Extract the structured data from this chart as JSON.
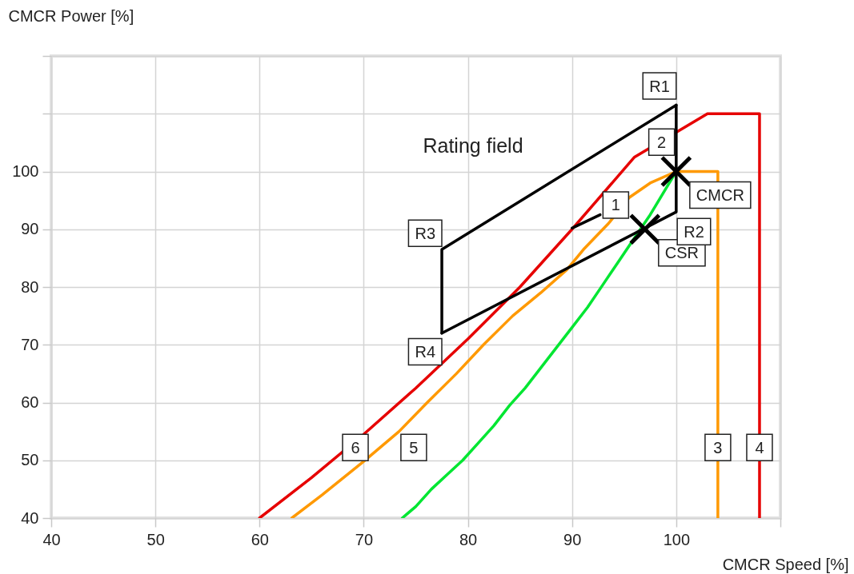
{
  "chart_data": {
    "type": "line",
    "xlabel": "CMCR Speed [%]",
    "ylabel": "CMCR Power [%]",
    "xlim": [
      40,
      110
    ],
    "xticks": [
      40,
      50,
      60,
      70,
      80,
      90,
      100,
      {
        "value": 110,
        "label": null
      }
    ],
    "ylim": [
      40,
      120
    ],
    "yticks": [
      40,
      50,
      60,
      70,
      80,
      90,
      100,
      {
        "value": 110,
        "label": null
      },
      {
        "value": 120,
        "label": null
      }
    ],
    "grid": true,
    "series": [
      {
        "color": "#e60000",
        "x": [
          60,
          65,
          70,
          75,
          80,
          85,
          90,
          96,
          103,
          108,
          108
        ],
        "values": [
          40,
          47,
          54.5,
          62.5,
          71,
          80,
          90,
          102.5,
          110,
          110,
          40
        ]
      },
      {
        "color": "#ff9900",
        "x": [
          63.1,
          66,
          70,
          73.4,
          76.1,
          78.9,
          81.5,
          84.3,
          87,
          89.5,
          91.1,
          93.5,
          95.5,
          97.5,
          100,
          104,
          104
        ],
        "values": [
          40,
          44,
          49.8,
          55,
          60,
          65,
          70,
          75,
          79,
          83,
          86.5,
          91,
          95.5,
          98,
          100,
          100,
          40
        ]
      },
      {
        "color": "#00e632",
        "x": [
          73.7,
          75,
          76.5,
          78,
          79.5,
          81,
          82.5,
          84,
          85.5,
          87,
          88.5,
          90,
          91.5,
          93,
          94.5,
          96,
          97.5,
          99,
          100
        ],
        "values": [
          40,
          42,
          45,
          47.5,
          50,
          53,
          56,
          59.5,
          62.5,
          66,
          69.5,
          73,
          76.5,
          80.5,
          84.5,
          88.5,
          92.5,
          97,
          100
        ]
      },
      {
        "color": "#000000",
        "x": [
          77.5,
          77.5,
          100
        ],
        "values": [
          72,
          86.5,
          111.5
        ]
      },
      {
        "color": "#000000",
        "x": [
          77.5,
          100,
          100
        ],
        "values": [
          72,
          93,
          111.5
        ]
      },
      {
        "color": "#000000",
        "x": [
          90,
          92.7
        ],
        "values": [
          90.2,
          92.5
        ]
      },
      {
        "type": "scatter",
        "name": "CMCR",
        "marker": "cross",
        "color": "#000000",
        "x": [
          100
        ],
        "values": [
          100
        ]
      },
      {
        "type": "scatter",
        "name": "CSR",
        "marker": "cross",
        "color": "#000000",
        "x": [
          97
        ],
        "values": [
          90
        ]
      }
    ],
    "annotations": [
      "Rating field",
      {
        "text": "R1",
        "x": 98.4,
        "y": 114.8
      },
      {
        "text": "2",
        "x": 98.6,
        "y": 105.1
      },
      {
        "text": "1",
        "x": 94.2,
        "y": 94.2
      },
      {
        "text": "R2",
        "x": 101.7,
        "y": 89.6
      },
      {
        "text": "R3",
        "x": 75.9,
        "y": 89.3
      },
      {
        "text": "R4",
        "x": 75.9,
        "y": 68.8
      },
      {
        "text": "6",
        "x": 69.2,
        "y": 52.2
      },
      {
        "text": "5",
        "x": 74.8,
        "y": 52.2
      },
      {
        "text": "3",
        "x": 104,
        "y": 52.2
      },
      {
        "text": "4",
        "x": 108,
        "y": 52.2
      }
    ]
  }
}
